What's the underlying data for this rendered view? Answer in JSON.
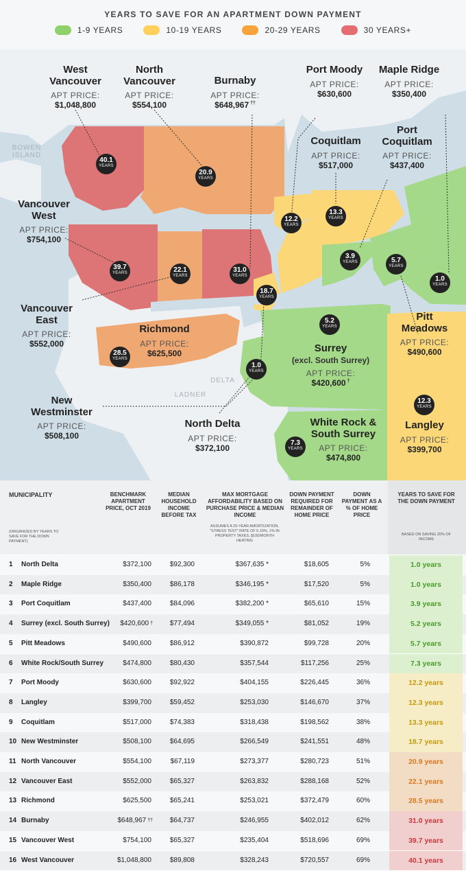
{
  "title": "YEARS TO SAVE FOR AN APARTMENT DOWN PAYMENT",
  "legend": [
    {
      "label": "1-9 YEARS",
      "color": "#8fd16a"
    },
    {
      "label": "10-19 YEARS",
      "color": "#ffd15c"
    },
    {
      "label": "20-29 YEARS",
      "color": "#f9a43a"
    },
    {
      "label": "30 YEARS+",
      "color": "#e36d73"
    }
  ],
  "colors": {
    "water": "#cfdde7",
    "land": "#eef1f3",
    "green": "#a3d989",
    "yellow": "#fbd777",
    "orange": "#f0a872",
    "red": "#dd7476",
    "badge": "#222222"
  },
  "map": {
    "apt_price_label": "APT PRICE:",
    "years_label": "YEARS",
    "places": {
      "bowen": "BOWEN ISLAND",
      "delta": "DELTA",
      "ladner": "LADNER"
    },
    "labels": {
      "west_vancouver": {
        "name": "West Vancouver",
        "price": "$1,048,800"
      },
      "north_vancouver": {
        "name": "North Vancouver",
        "price": "$554,100"
      },
      "burnaby": {
        "name": "Burnaby",
        "price": "$648,967",
        "mark": "††"
      },
      "port_moody": {
        "name": "Port Moody",
        "price": "$630,600"
      },
      "maple_ridge": {
        "name": "Maple Ridge",
        "price": "$350,400"
      },
      "coquitlam": {
        "name": "Coquitlam",
        "price": "$517,000"
      },
      "port_coquitlam": {
        "name": "Port Coquitlam",
        "price": "$437,400"
      },
      "vancouver_west": {
        "name": "Vancouver West",
        "price": "$754,100"
      },
      "vancouver_east": {
        "name": "Vancouver East",
        "price": "$552,000"
      },
      "richmond": {
        "name": "Richmond",
        "price": "$625,500"
      },
      "new_westminster": {
        "name": "New Westminster",
        "price": "$508,100"
      },
      "north_delta": {
        "name": "North Delta",
        "price": "$372,100"
      },
      "surrey": {
        "name": "Surrey",
        "sub": "(excl. South Surrey)",
        "price": "$420,600",
        "mark": "†"
      },
      "pitt_meadows": {
        "name": "Pitt Meadows",
        "price": "$490,600"
      },
      "white_rock": {
        "name": "White Rock & South Surrey",
        "price": "$474,800"
      },
      "langley": {
        "name": "Langley",
        "price": "$399,700"
      }
    },
    "badges": {
      "west_vancouver": "40.1",
      "north_vancouver": "20.9",
      "vancouver_west": "39.7",
      "vancouver_east": "22.1",
      "burnaby": "31.0",
      "new_westminster": "18.7",
      "port_moody": "12.2",
      "coquitlam": "13.3",
      "port_coquitlam": "3.9",
      "pitt_meadows": "5.7",
      "maple_ridge": "1.0",
      "richmond": "28.5",
      "surrey": "5.2",
      "north_delta": "1.0",
      "langley": "12.3",
      "white_rock": "7.3"
    }
  },
  "table": {
    "headers": {
      "municipality": "MUNICIPALITY",
      "organized": "(ORGANIZED BY YEARS TO SAVE FOR THE DOWN PAYMENT)",
      "price": "BENCHMARK APARTMENT PRICE, OCT 2019",
      "income": "MEDIAN HOUSEHOLD INCOME BEFORE TAX",
      "mortgage": "MAX MORTGAGE AFFORDABILITY BASED ON PURCHASE PRICE & MEDIAN INCOME",
      "mortgage_note": "ASSUMES A 25-YEAR AMORTIZATION, \"STRESS TEST\" RATE OF 5.19%, 1% IN PROPERTY TAXES, $100/MONTH HEATING",
      "down": "DOWN PAYMENT REQUIRED FOR REMAINDER OF HOME PRICE",
      "down_pct": "DOWN PAYMENT AS A % OF HOME PRICE",
      "years": "YEARS TO SAVE FOR THE DOWN PAYMENT",
      "years_note": "BASED ON SAVING 20% OF INCOME"
    },
    "rows": [
      {
        "rank": "1",
        "name": "North Delta",
        "price": "$372,100",
        "mark": "",
        "income": "$92,300",
        "mortgage": "$367,635 *",
        "down": "$18,605",
        "pct": "5%",
        "years": "1.0 years"
      },
      {
        "rank": "2",
        "name": "Maple Ridge",
        "price": "$350,400",
        "mark": "",
        "income": "$86,178",
        "mortgage": "$346,195 *",
        "down": "$17,520",
        "pct": "5%",
        "years": "1.0 years"
      },
      {
        "rank": "3",
        "name": "Port Coquitlam",
        "price": "$437,400",
        "mark": "",
        "income": "$84,096",
        "mortgage": "$382,200 *",
        "down": "$65,610",
        "pct": "15%",
        "years": "3.9 years"
      },
      {
        "rank": "4",
        "name": "Surrey (excl. South Surrey)",
        "price": "$420,600",
        "mark": "†",
        "income": "$77,494",
        "mortgage": "$349,055 *",
        "down": "$81,052",
        "pct": "19%",
        "years": "5.2 years"
      },
      {
        "rank": "5",
        "name": "Pitt Meadows",
        "price": "$490,600",
        "mark": "",
        "income": "$86,912",
        "mortgage": "$390,872",
        "down": "$99,728",
        "pct": "20%",
        "years": "5.7 years"
      },
      {
        "rank": "6",
        "name": "White Rock/South Surrey",
        "price": "$474,800",
        "mark": "",
        "income": "$80,430",
        "mortgage": "$357,544",
        "down": "$117,256",
        "pct": "25%",
        "years": "7.3 years"
      },
      {
        "rank": "7",
        "name": "Port Moody",
        "price": "$630,600",
        "mark": "",
        "income": "$92,922",
        "mortgage": "$404,155",
        "down": "$226,445",
        "pct": "36%",
        "years": "12.2 years"
      },
      {
        "rank": "8",
        "name": "Langley",
        "price": "$399,700",
        "mark": "",
        "income": "$59,452",
        "mortgage": "$253,030",
        "down": "$146,670",
        "pct": "37%",
        "years": "12.3 years"
      },
      {
        "rank": "9",
        "name": "Coquitlam",
        "price": "$517,000",
        "mark": "",
        "income": "$74,383",
        "mortgage": "$318,438",
        "down": "$198,562",
        "pct": "38%",
        "years": "13.3 years"
      },
      {
        "rank": "10",
        "name": "New Westminster",
        "price": "$508,100",
        "mark": "",
        "income": "$64,695",
        "mortgage": "$266,549",
        "down": "$241,551",
        "pct": "48%",
        "years": "18.7 years"
      },
      {
        "rank": "11",
        "name": "North Vancouver",
        "price": "$554,100",
        "mark": "",
        "income": "$67,119",
        "mortgage": "$273,377",
        "down": "$280,723",
        "pct": "51%",
        "years": "20.9 years"
      },
      {
        "rank": "12",
        "name": "Vancouver East",
        "price": "$552,000",
        "mark": "",
        "income": "$65,327",
        "mortgage": "$263,832",
        "down": "$288,168",
        "pct": "52%",
        "years": "22.1 years"
      },
      {
        "rank": "13",
        "name": "Richmond",
        "price": "$625,500",
        "mark": "",
        "income": "$65,241",
        "mortgage": "$253,021",
        "down": "$372,479",
        "pct": "60%",
        "years": "28.5 years"
      },
      {
        "rank": "14",
        "name": "Burnaby",
        "price": "$648,967",
        "mark": "††",
        "income": "$64,737",
        "mortgage": "$246,955",
        "down": "$402,012",
        "pct": "62%",
        "years": "31.0 years"
      },
      {
        "rank": "15",
        "name": "Vancouver West",
        "price": "$754,100",
        "mark": "",
        "income": "$65,327",
        "mortgage": "$235,404",
        "down": "$518,696",
        "pct": "69%",
        "years": "39.7 years"
      },
      {
        "rank": "16",
        "name": "West Vancouver",
        "price": "$1,048,800",
        "mark": "",
        "income": "$89,808",
        "mortgage": "$328,243",
        "down": "$720,557",
        "pct": "69%",
        "years": "40.1 years"
      }
    ]
  },
  "chart_data": {
    "type": "table",
    "title": "YEARS TO SAVE FOR AN APARTMENT DOWN PAYMENT",
    "legend": [
      "1-9 YEARS",
      "10-19 YEARS",
      "20-29 YEARS",
      "30 YEARS+"
    ],
    "columns": [
      "MUNICIPALITY",
      "BENCHMARK APARTMENT PRICE, OCT 2019",
      "MEDIAN HOUSEHOLD INCOME BEFORE TAX",
      "MAX MORTGAGE AFFORDABILITY BASED ON PURCHASE PRICE & MEDIAN INCOME",
      "DOWN PAYMENT REQUIRED FOR REMAINDER OF HOME PRICE",
      "DOWN PAYMENT AS A % OF HOME PRICE",
      "YEARS TO SAVE FOR THE DOWN PAYMENT"
    ],
    "categories": [
      "North Delta",
      "Maple Ridge",
      "Port Coquitlam",
      "Surrey (excl. South Surrey)",
      "Pitt Meadows",
      "White Rock/South Surrey",
      "Port Moody",
      "Langley",
      "Coquitlam",
      "New Westminster",
      "North Vancouver",
      "Vancouver East",
      "Richmond",
      "Burnaby",
      "Vancouver West",
      "West Vancouver"
    ],
    "years_to_save": [
      1.0,
      1.0,
      3.9,
      5.2,
      5.7,
      7.3,
      12.2,
      12.3,
      13.3,
      18.7,
      20.9,
      22.1,
      28.5,
      31.0,
      39.7,
      40.1
    ],
    "apartment_price": [
      372100,
      350400,
      437400,
      420600,
      490600,
      474800,
      630600,
      399700,
      517000,
      508100,
      554100,
      552000,
      625500,
      648967,
      754100,
      1048800
    ],
    "median_income": [
      92300,
      86178,
      84096,
      77494,
      86912,
      80430,
      92922,
      59452,
      74383,
      64695,
      67119,
      65327,
      65241,
      64737,
      65327,
      89808
    ],
    "down_payment": [
      18605,
      17520,
      65610,
      81052,
      99728,
      117256,
      226445,
      146670,
      198562,
      241551,
      280723,
      288168,
      372479,
      402012,
      518696,
      720557
    ],
    "down_payment_pct": [
      5,
      5,
      15,
      19,
      20,
      25,
      36,
      37,
      38,
      48,
      51,
      52,
      60,
      62,
      69,
      69
    ]
  }
}
